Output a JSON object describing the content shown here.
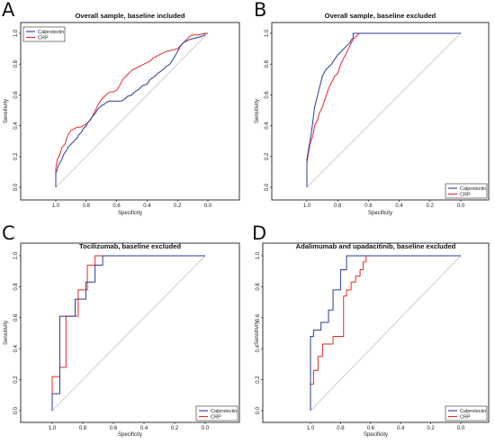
{
  "colors": {
    "calprotectin": "#2a3b9a",
    "crp": "#e8272a",
    "diagonal": "#b8b8b8",
    "axis": "#000000"
  },
  "chart_data": [
    {
      "panel": "A",
      "type": "line",
      "title": "Overall sample, baseline included",
      "xlabel": "Specificity",
      "ylabel": "Sensitivity",
      "xlim": [
        1.0,
        0.0
      ],
      "ylim": [
        0.0,
        1.0
      ],
      "x_ticks": [
        "1.0",
        "0.8",
        "0.6",
        "0.4",
        "0.2",
        "0.0"
      ],
      "y_ticks": [
        "0.0",
        "0.2",
        "0.4",
        "0.6",
        "0.8",
        "1.0"
      ],
      "legend_position": "top-left",
      "series": [
        {
          "name": "Calprotectin",
          "color": "#2a3b9a",
          "x": [
            1.0,
            1.0,
            0.99,
            0.98,
            0.96,
            0.95,
            0.93,
            0.92,
            0.9,
            0.88,
            0.86,
            0.85,
            0.83,
            0.82,
            0.8,
            0.79,
            0.77,
            0.76,
            0.74,
            0.73,
            0.71,
            0.7,
            0.68,
            0.67,
            0.65,
            0.64,
            0.62,
            0.61,
            0.59,
            0.57,
            0.55,
            0.53,
            0.5,
            0.48,
            0.45,
            0.43,
            0.4,
            0.38,
            0.35,
            0.33,
            0.3,
            0.28,
            0.25,
            0.23,
            0.2,
            0.18,
            0.16,
            0.12,
            0.08,
            0.04,
            0.02,
            0.02
          ],
          "y": [
            0.0,
            0.09,
            0.12,
            0.15,
            0.18,
            0.21,
            0.24,
            0.26,
            0.28,
            0.3,
            0.32,
            0.34,
            0.36,
            0.38,
            0.4,
            0.42,
            0.44,
            0.46,
            0.48,
            0.5,
            0.52,
            0.53,
            0.54,
            0.55,
            0.56,
            0.56,
            0.56,
            0.56,
            0.56,
            0.56,
            0.57,
            0.59,
            0.6,
            0.62,
            0.64,
            0.66,
            0.67,
            0.7,
            0.72,
            0.74,
            0.76,
            0.78,
            0.8,
            0.83,
            0.88,
            0.92,
            0.94,
            0.96,
            0.97,
            0.98,
            0.99,
            1.0
          ]
        },
        {
          "name": "CRP",
          "color": "#e8272a",
          "x": [
            1.0,
            1.0,
            0.99,
            0.97,
            0.96,
            0.94,
            0.93,
            0.92,
            0.9,
            0.88,
            0.86,
            0.84,
            0.82,
            0.8,
            0.78,
            0.76,
            0.74,
            0.72,
            0.7,
            0.68,
            0.66,
            0.64,
            0.62,
            0.6,
            0.58,
            0.56,
            0.54,
            0.52,
            0.5,
            0.48,
            0.46,
            0.44,
            0.42,
            0.4,
            0.38,
            0.36,
            0.34,
            0.32,
            0.3,
            0.28,
            0.24,
            0.2,
            0.17,
            0.14,
            0.12,
            0.1,
            0.06,
            0.02,
            0.0
          ],
          "y": [
            0.0,
            0.12,
            0.18,
            0.22,
            0.26,
            0.28,
            0.31,
            0.34,
            0.37,
            0.38,
            0.39,
            0.39,
            0.4,
            0.41,
            0.43,
            0.46,
            0.5,
            0.54,
            0.57,
            0.59,
            0.61,
            0.62,
            0.62,
            0.63,
            0.66,
            0.7,
            0.72,
            0.74,
            0.76,
            0.77,
            0.78,
            0.79,
            0.8,
            0.81,
            0.82,
            0.84,
            0.85,
            0.86,
            0.87,
            0.88,
            0.89,
            0.9,
            0.93,
            0.96,
            0.98,
            0.99,
            0.99,
            1.0,
            1.0
          ]
        }
      ]
    },
    {
      "panel": "B",
      "type": "line",
      "title": "Overall sample, baseline excluded",
      "xlabel": "Specificity",
      "ylabel": "Sensitivity",
      "xlim": [
        1.0,
        0.0
      ],
      "ylim": [
        0.0,
        1.0
      ],
      "x_ticks": [
        "1.0",
        "0.8",
        "0.6",
        "0.4",
        "0.2",
        "0.0"
      ],
      "y_ticks": [
        "0.0",
        "0.2",
        "0.4",
        "0.6",
        "0.8",
        "1.0"
      ],
      "legend_position": "bottom-right",
      "series": [
        {
          "name": "Calprotectin",
          "color": "#2a3b9a",
          "x": [
            1.0,
            1.0,
            0.99,
            0.98,
            0.97,
            0.96,
            0.95,
            0.94,
            0.93,
            0.92,
            0.91,
            0.9,
            0.88,
            0.86,
            0.84,
            0.82,
            0.8,
            0.78,
            0.76,
            0.74,
            0.72,
            0.71,
            0.7,
            0.7,
            0.0
          ],
          "y": [
            0.0,
            0.18,
            0.24,
            0.3,
            0.36,
            0.44,
            0.52,
            0.56,
            0.6,
            0.64,
            0.68,
            0.72,
            0.76,
            0.78,
            0.8,
            0.83,
            0.86,
            0.88,
            0.9,
            0.92,
            0.94,
            0.96,
            0.97,
            1.0,
            1.0
          ]
        },
        {
          "name": "CRP",
          "color": "#e8272a",
          "x": [
            1.0,
            1.0,
            0.99,
            0.98,
            0.96,
            0.95,
            0.93,
            0.92,
            0.9,
            0.88,
            0.86,
            0.84,
            0.82,
            0.8,
            0.78,
            0.76,
            0.74,
            0.72,
            0.7,
            0.68,
            0.66,
            0.0
          ],
          "y": [
            0.0,
            0.16,
            0.22,
            0.28,
            0.34,
            0.4,
            0.44,
            0.48,
            0.52,
            0.58,
            0.64,
            0.68,
            0.72,
            0.74,
            0.8,
            0.84,
            0.88,
            0.92,
            0.96,
            0.98,
            1.0,
            1.0
          ]
        }
      ]
    },
    {
      "panel": "C",
      "type": "line",
      "title": "Tocilizumab, baseline excluded",
      "xlabel": "Specificity",
      "ylabel": "Sensitivity",
      "xlim": [
        1.0,
        0.0
      ],
      "ylim": [
        0.0,
        1.0
      ],
      "x_ticks": [
        "1.0",
        "0.8",
        "0.6",
        "0.4",
        "0.2",
        "0.0"
      ],
      "y_ticks": [
        "0.0",
        "0.2",
        "0.4",
        "0.6",
        "0.8",
        "1.0"
      ],
      "legend_position": "bottom-right",
      "series": [
        {
          "name": "Calprotectin",
          "color": "#2a3b9a",
          "x": [
            1.0,
            1.0,
            0.95,
            0.95,
            0.85,
            0.85,
            0.78,
            0.78,
            0.72,
            0.72,
            0.67,
            0.67,
            0.0
          ],
          "y": [
            0.0,
            0.11,
            0.11,
            0.61,
            0.61,
            0.72,
            0.72,
            0.83,
            0.83,
            0.94,
            0.94,
            1.0,
            1.0
          ]
        },
        {
          "name": "CRP",
          "color": "#e8272a",
          "x": [
            1.0,
            1.0,
            0.95,
            0.95,
            0.91,
            0.91,
            0.83,
            0.83,
            0.77,
            0.77,
            0.72,
            0.72,
            0.0
          ],
          "y": [
            0.0,
            0.22,
            0.22,
            0.28,
            0.28,
            0.61,
            0.61,
            0.78,
            0.78,
            0.94,
            0.94,
            1.0,
            1.0
          ]
        }
      ]
    },
    {
      "panel": "D",
      "type": "line",
      "title": "Adalimumab and upadacitinib, baseline excluded",
      "xlabel": "Specificity",
      "ylabel": "Sensitivity",
      "xlim": [
        1.0,
        0.0
      ],
      "ylim": [
        0.0,
        1.0
      ],
      "x_ticks": [
        "1.0",
        "0.8",
        "0.6",
        "0.4",
        "0.2",
        "0.0"
      ],
      "y_ticks": [
        "0.0",
        "0.2",
        "0.4",
        "0.6",
        "0.8",
        "1.0"
      ],
      "legend_position": "bottom-right",
      "series": [
        {
          "name": "Calprotectin",
          "color": "#2a3b9a",
          "x": [
            1.0,
            1.0,
            0.98,
            0.98,
            0.93,
            0.93,
            0.88,
            0.88,
            0.85,
            0.85,
            0.8,
            0.8,
            0.76,
            0.76,
            0.71,
            0.71,
            0.0
          ],
          "y": [
            0.0,
            0.48,
            0.48,
            0.52,
            0.52,
            0.57,
            0.57,
            0.65,
            0.65,
            0.78,
            0.78,
            0.91,
            0.91,
            1.0,
            1.0,
            1.0,
            1.0
          ]
        },
        {
          "name": "CRP",
          "color": "#e8272a",
          "x": [
            1.0,
            1.0,
            0.98,
            0.98,
            0.95,
            0.95,
            0.92,
            0.92,
            0.85,
            0.85,
            0.78,
            0.78,
            0.76,
            0.76,
            0.73,
            0.73,
            0.7,
            0.7,
            0.67,
            0.67,
            0.65,
            0.65,
            0.63,
            0.63,
            0.0
          ],
          "y": [
            0.0,
            0.17,
            0.17,
            0.26,
            0.26,
            0.35,
            0.35,
            0.43,
            0.43,
            0.48,
            0.48,
            0.74,
            0.74,
            0.78,
            0.78,
            0.83,
            0.83,
            0.87,
            0.87,
            0.91,
            0.91,
            0.96,
            0.96,
            1.0,
            1.0
          ]
        }
      ]
    }
  ]
}
